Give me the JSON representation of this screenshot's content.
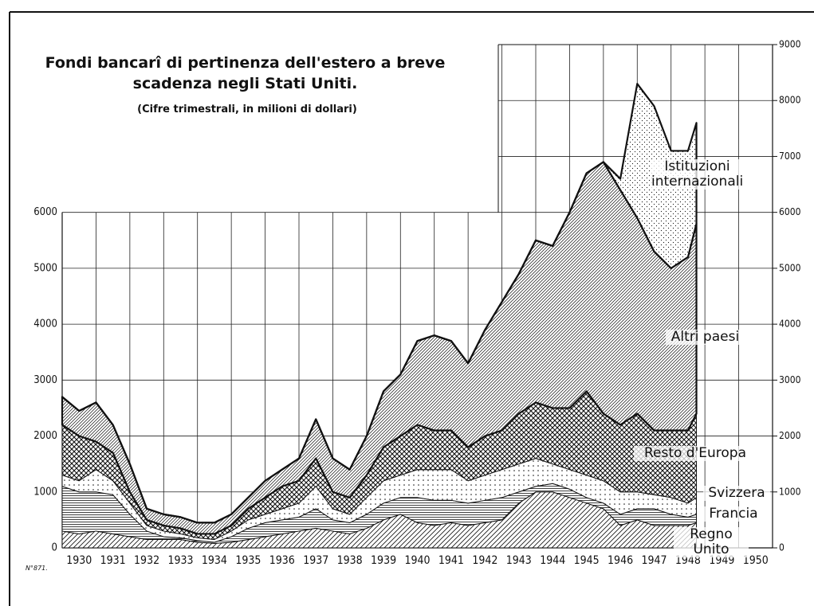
{
  "chart_data": {
    "type": "stacked_area",
    "title": "Fondi bancarî di pertinenza dell'estero a breve scadenza negli Stati Uniti.",
    "subtitle": "(Cifre trimestrali, in milioni di dollari)",
    "note": "N°871.",
    "x": [
      1930,
      1930.5,
      1931,
      1931.5,
      1932,
      1932.5,
      1933,
      1933.5,
      1934,
      1934.5,
      1935,
      1935.5,
      1936,
      1936.5,
      1937,
      1937.5,
      1938,
      1938.5,
      1939,
      1939.5,
      1940,
      1940.5,
      1941,
      1941.5,
      1942,
      1942.5,
      1943,
      1943.5,
      1944,
      1944.5,
      1945,
      1945.5,
      1946,
      1946.5,
      1947,
      1947.5,
      1948,
      1948.5,
      1948.75
    ],
    "series": [
      {
        "name": "Regno Unito",
        "color": "#111111",
        "pattern": "diagonal",
        "values": [
          300,
          250,
          300,
          250,
          200,
          150,
          150,
          150,
          100,
          80,
          100,
          150,
          200,
          250,
          300,
          350,
          300,
          250,
          350,
          500,
          600,
          450,
          400,
          450,
          400,
          450,
          500,
          800,
          1000,
          1000,
          900,
          800,
          700,
          400,
          500,
          400,
          400,
          400,
          450
        ]
      },
      {
        "name": "Francia",
        "color": "#111111",
        "pattern": "horizontal",
        "values": [
          800,
          750,
          700,
          700,
          400,
          150,
          50,
          30,
          30,
          20,
          100,
          200,
          250,
          250,
          250,
          350,
          200,
          200,
          250,
          300,
          300,
          450,
          450,
          400,
          400,
          400,
          400,
          200,
          100,
          150,
          150,
          100,
          100,
          200,
          200,
          300,
          200,
          150,
          150
        ]
      },
      {
        "name": "Svizzera",
        "color": "#111111",
        "pattern": "dots",
        "values": [
          200,
          200,
          400,
          250,
          200,
          100,
          100,
          70,
          50,
          50,
          100,
          150,
          150,
          200,
          250,
          400,
          200,
          150,
          300,
          400,
          400,
          500,
          550,
          550,
          400,
          450,
          500,
          500,
          500,
          350,
          350,
          400,
          400,
          400,
          300,
          250,
          300,
          250,
          300
        ]
      },
      {
        "name": "Resto d'Europa",
        "color": "#111111",
        "pattern": "cross",
        "values": [
          900,
          800,
          500,
          500,
          200,
          100,
          100,
          100,
          70,
          100,
          100,
          200,
          300,
          400,
          400,
          500,
          300,
          300,
          400,
          600,
          700,
          800,
          700,
          700,
          600,
          700,
          700,
          900,
          1000,
          1000,
          1100,
          1500,
          1200,
          1200,
          1400,
          1150,
          1200,
          1300,
          1500
        ]
      },
      {
        "name": "Altri paesi",
        "color": "#111111",
        "pattern": "diagonal-dense",
        "values": [
          500,
          450,
          700,
          500,
          500,
          200,
          200,
          200,
          200,
          200,
          200,
          200,
          300,
          300,
          400,
          700,
          600,
          500,
          700,
          1000,
          1100,
          1500,
          1700,
          1600,
          1500,
          1900,
          2300,
          2500,
          2900,
          2900,
          3500,
          3900,
          4500,
          4200,
          3500,
          3200,
          2900,
          3100,
          3400
        ]
      },
      {
        "name": "Istituzioni internazionali",
        "color": "#111111",
        "pattern": "dots-fine",
        "values": [
          0,
          0,
          0,
          0,
          0,
          0,
          0,
          0,
          0,
          0,
          0,
          0,
          0,
          0,
          0,
          0,
          0,
          0,
          0,
          0,
          0,
          0,
          0,
          0,
          0,
          0,
          0,
          0,
          0,
          0,
          0,
          0,
          0,
          200,
          2400,
          2600,
          2100,
          1900,
          1800
        ]
      }
    ],
    "xlim": [
      1930,
      1951
    ],
    "xticks": [
      1930,
      1931,
      1932,
      1933,
      1934,
      1935,
      1936,
      1937,
      1938,
      1939,
      1940,
      1941,
      1942,
      1943,
      1944,
      1945,
      1946,
      1947,
      1948,
      1949,
      1950
    ],
    "ylim": [
      0,
      9000
    ],
    "yticks": [
      0,
      1000,
      2000,
      3000,
      4000,
      5000,
      6000
    ],
    "y2lim": [
      0,
      9000
    ],
    "y2ticks": [
      0,
      1000,
      2000,
      3000,
      4000,
      5000,
      6000,
      7000,
      8000,
      9000
    ],
    "grid": true
  }
}
